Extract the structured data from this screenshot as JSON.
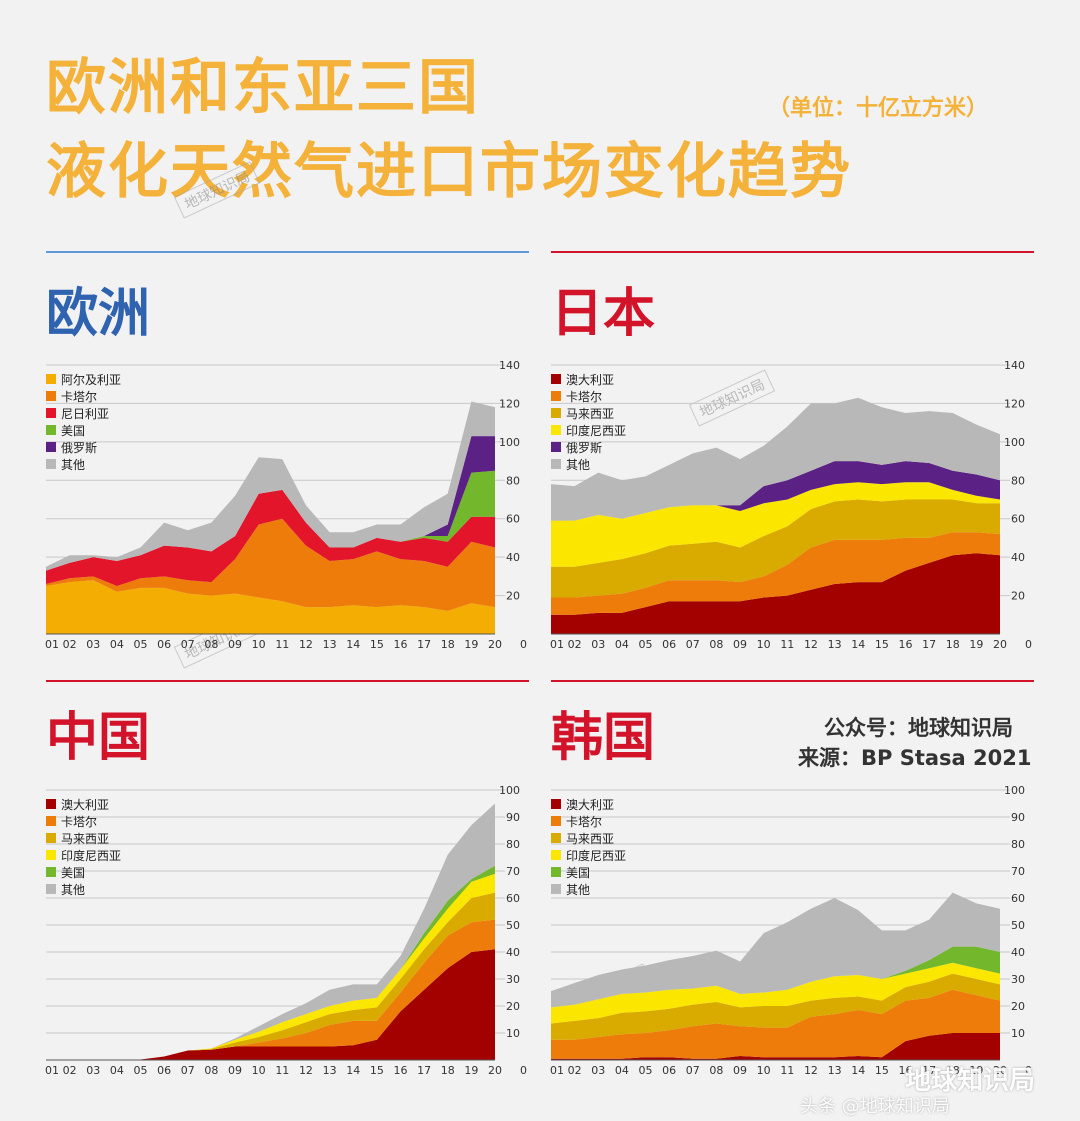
{
  "header": {
    "title_line1": "欧洲和东亚三国",
    "title_line2": "液化天然气进口市场变化趋势",
    "unit": "（单位：十亿立方米）"
  },
  "credits": {
    "line1": "公众号：地球知识局",
    "line2": "来源：BP Stasa 2021"
  },
  "watermark": {
    "text": "地球知识局",
    "bottom": "地球知识局",
    "bottom2": "头条 @地球知识局"
  },
  "colors": {
    "title": "#f4b23a",
    "blue": "#2f63b0",
    "red": "#d3132a",
    "澳大利亚": "#a30000",
    "卡塔尔": "#ee7c0b",
    "马来西亚": "#d9aa00",
    "印度尼西亚": "#fbe600",
    "美国": "#72b72c",
    "俄罗斯": "#5b2185",
    "其他": "#b8b8b8",
    "阿尔及利亚": "#f4ad03",
    "尼日利亚": "#e2152b"
  },
  "chart_data": [
    {
      "id": "europe",
      "region": "欧洲",
      "type": "area",
      "stacked": true,
      "x": [
        "01",
        "02",
        "03",
        "04",
        "05",
        "06",
        "07",
        "08",
        "09",
        "10",
        "11",
        "12",
        "13",
        "14",
        "15",
        "16",
        "17",
        "18",
        "19",
        "20"
      ],
      "ylim": [
        0,
        140
      ],
      "yticks": [
        20,
        40,
        60,
        80,
        100,
        120,
        140
      ],
      "series": [
        {
          "name": "阿尔及利亚",
          "values": [
            25,
            27,
            28,
            22,
            24,
            24,
            21,
            20,
            21,
            19,
            17,
            14,
            14,
            15,
            14,
            15,
            14,
            12,
            16,
            14
          ]
        },
        {
          "name": "卡塔尔",
          "values": [
            1,
            2,
            2,
            3,
            5,
            6,
            7,
            7,
            18,
            38,
            43,
            32,
            24,
            24,
            29,
            24,
            24,
            23,
            32,
            31
          ]
        },
        {
          "name": "尼日利亚",
          "values": [
            7,
            8,
            10,
            13,
            12,
            16,
            17,
            16,
            12,
            16,
            15,
            12,
            7,
            6,
            7,
            9,
            12,
            13,
            13,
            16
          ]
        },
        {
          "name": "美国",
          "values": [
            0,
            0,
            0,
            0,
            0,
            0,
            0,
            0,
            0,
            0,
            0,
            0,
            0,
            0,
            0,
            0,
            1,
            3,
            23,
            24
          ]
        },
        {
          "name": "俄罗斯",
          "values": [
            0,
            0,
            0,
            0,
            0,
            0,
            0,
            0,
            0,
            0,
            0,
            0,
            0,
            0,
            0,
            0,
            0,
            6,
            19,
            18
          ]
        },
        {
          "name": "其他",
          "values": [
            2,
            4,
            1,
            2,
            4,
            12,
            9,
            15,
            21,
            19,
            16,
            9,
            8,
            8,
            7,
            9,
            15,
            16,
            18,
            15
          ]
        }
      ]
    },
    {
      "id": "japan",
      "region": "日本",
      "type": "area",
      "stacked": true,
      "x": [
        "01",
        "02",
        "03",
        "04",
        "05",
        "06",
        "07",
        "08",
        "09",
        "10",
        "11",
        "12",
        "13",
        "14",
        "15",
        "16",
        "17",
        "18",
        "19",
        "20"
      ],
      "ylim": [
        0,
        140
      ],
      "yticks": [
        20,
        40,
        60,
        80,
        100,
        120,
        140
      ],
      "series": [
        {
          "name": "澳大利亚",
          "values": [
            10,
            10,
            11,
            11,
            14,
            17,
            17,
            17,
            17,
            19,
            20,
            23,
            26,
            27,
            27,
            33,
            37,
            41,
            42,
            41
          ]
        },
        {
          "name": "卡塔尔",
          "values": [
            9,
            9,
            9,
            10,
            10,
            11,
            11,
            11,
            10,
            11,
            16,
            22,
            23,
            22,
            22,
            17,
            13,
            12,
            11,
            11
          ]
        },
        {
          "name": "马来西亚",
          "values": [
            16,
            16,
            17,
            18,
            18,
            18,
            19,
            20,
            18,
            21,
            20,
            20,
            20,
            21,
            20,
            20,
            20,
            17,
            15,
            16
          ]
        },
        {
          "name": "印度尼西亚",
          "values": [
            24,
            24,
            25,
            21,
            21,
            20,
            20,
            19,
            19,
            17,
            14,
            10,
            9,
            9,
            9,
            9,
            9,
            5,
            4,
            2
          ]
        },
        {
          "name": "俄罗斯",
          "values": [
            0,
            0,
            0,
            0,
            0,
            0,
            0,
            0,
            3,
            9,
            10,
            10,
            12,
            11,
            10,
            11,
            10,
            10,
            11,
            10
          ]
        },
        {
          "name": "其他",
          "values": [
            19,
            18,
            22,
            20,
            19,
            22,
            27,
            30,
            24,
            21,
            28,
            35,
            30,
            33,
            30,
            25,
            27,
            30,
            26,
            24
          ]
        }
      ]
    },
    {
      "id": "china",
      "region": "中国",
      "type": "area",
      "stacked": true,
      "x": [
        "01",
        "02",
        "03",
        "04",
        "05",
        "06",
        "07",
        "08",
        "09",
        "10",
        "11",
        "12",
        "13",
        "14",
        "15",
        "16",
        "17",
        "18",
        "19",
        "20"
      ],
      "ylim": [
        0,
        100
      ],
      "yticks": [
        10,
        20,
        30,
        40,
        50,
        60,
        70,
        80,
        90,
        100
      ],
      "series": [
        {
          "name": "澳大利亚",
          "values": [
            0,
            0,
            0,
            0,
            0.2,
            1.3,
            3.5,
            3.8,
            5,
            5,
            5,
            5,
            5,
            5.5,
            7.5,
            18,
            26,
            34,
            40,
            41
          ]
        },
        {
          "name": "卡塔尔",
          "values": [
            0,
            0,
            0,
            0,
            0,
            0,
            0,
            0,
            0,
            1.5,
            3,
            5,
            8,
            9,
            7,
            7,
            10,
            12,
            11,
            11
          ]
        },
        {
          "name": "马来西亚",
          "values": [
            0,
            0,
            0,
            0,
            0,
            0,
            0,
            0.3,
            1.5,
            2,
            3,
            4,
            4,
            4,
            5,
            5,
            5,
            5,
            9,
            10
          ]
        },
        {
          "name": "印度尼西亚",
          "values": [
            0,
            0,
            0,
            0,
            0,
            0,
            0,
            0.2,
            1,
            2,
            3,
            3,
            3,
            3.5,
            3.5,
            3.5,
            4,
            5,
            6,
            7
          ]
        },
        {
          "name": "美国",
          "values": [
            0,
            0,
            0,
            0,
            0,
            0,
            0,
            0,
            0,
            0,
            0,
            0,
            0,
            0,
            0,
            0,
            2,
            3,
            1,
            3
          ]
        },
        {
          "name": "其他",
          "values": [
            0,
            0,
            0,
            0,
            0,
            0,
            0,
            0,
            0.5,
            2,
            3,
            4,
            6,
            6,
            5,
            5,
            9,
            17,
            20,
            23
          ]
        }
      ]
    },
    {
      "id": "korea",
      "region": "韩国",
      "type": "area",
      "stacked": true,
      "x": [
        "01",
        "02",
        "03",
        "04",
        "05",
        "06",
        "07",
        "08",
        "09",
        "10",
        "11",
        "12",
        "13",
        "14",
        "15",
        "16",
        "17",
        "18",
        "19",
        "20"
      ],
      "ylim": [
        0,
        100
      ],
      "yticks": [
        10,
        20,
        30,
        40,
        50,
        60,
        70,
        80,
        90,
        100
      ],
      "series": [
        {
          "name": "澳大利亚",
          "values": [
            0.5,
            0.5,
            0.5,
            0.5,
            1,
            1,
            0.5,
            0.5,
            1.5,
            1,
            1,
            1,
            1,
            1.5,
            1,
            7,
            9,
            10,
            10,
            10
          ]
        },
        {
          "name": "卡塔尔",
          "values": [
            7,
            7,
            8,
            9,
            9,
            10,
            12,
            13,
            11,
            11,
            11,
            15,
            16,
            17,
            16,
            15,
            14,
            16,
            14,
            12
          ]
        },
        {
          "name": "马来西亚",
          "values": [
            6,
            7,
            7,
            8,
            8,
            8,
            8,
            8,
            7,
            8,
            8,
            6,
            6,
            5,
            5,
            5,
            6,
            6,
            6,
            6
          ]
        },
        {
          "name": "印度尼西亚",
          "values": [
            6,
            6,
            7,
            7,
            7,
            7,
            6,
            6,
            5,
            5,
            6,
            7,
            8,
            8,
            8,
            5,
            5,
            4,
            4,
            4
          ]
        },
        {
          "name": "美国",
          "values": [
            0,
            0,
            0,
            0,
            0,
            0,
            0,
            0,
            0,
            0,
            0,
            0,
            0,
            0,
            0,
            1,
            3,
            6,
            8,
            8
          ]
        },
        {
          "name": "其他",
          "values": [
            6,
            8,
            9,
            9,
            10,
            11,
            12,
            13,
            12,
            22,
            25,
            27,
            29,
            24,
            18,
            15,
            15,
            20,
            16,
            16
          ]
        }
      ]
    }
  ]
}
